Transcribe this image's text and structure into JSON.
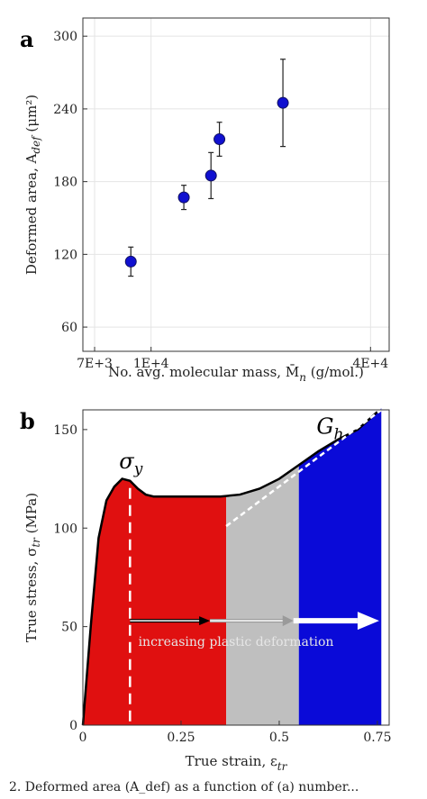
{
  "caption": "2. Deformed area (A_def) as a function of (a) number...",
  "chart_data": [
    {
      "type": "scatter",
      "panel_label": "a",
      "title": "",
      "xlabel": "No. avg. molecular mass, M̄",
      "xlabel_sub": "n",
      "xlabel_unit": "(g/mol.)",
      "ylabel": "Deformed area, A",
      "ylabel_sub": "def",
      "ylabel_unit": "(μm²)",
      "xscale": "log",
      "xlim": [
        6500,
        45000
      ],
      "ylim": [
        40,
        315
      ],
      "x_ticks": [
        {
          "value": 7000,
          "label": "7E+3"
        },
        {
          "value": 10000,
          "label": "1E+4"
        },
        {
          "value": 40000,
          "label": "4E+4"
        }
      ],
      "y_ticks": [
        60,
        120,
        180,
        240,
        300
      ],
      "grid": true,
      "marker_color": "#1010d0",
      "points": [
        {
          "x": 8800,
          "y": 114,
          "err_low": 12,
          "err_high": 12
        },
        {
          "x": 12300,
          "y": 167,
          "err_low": 10,
          "err_high": 10
        },
        {
          "x": 14600,
          "y": 185,
          "err_low": 19,
          "err_high": 19
        },
        {
          "x": 15400,
          "y": 215,
          "err_low": 14,
          "err_high": 14
        },
        {
          "x": 23000,
          "y": 245,
          "err_low": 36,
          "err_high": 36
        }
      ]
    },
    {
      "type": "area",
      "panel_label": "b",
      "title": "",
      "xlabel": "True strain, ε",
      "xlabel_sub": "tr",
      "ylabel": "True stress, σ",
      "ylabel_sub": "tr",
      "ylabel_unit": "(MPa)",
      "xlim": [
        0,
        0.78
      ],
      "ylim": [
        0,
        160
      ],
      "x_ticks": [
        {
          "value": 0,
          "label": "0"
        },
        {
          "value": 0.25,
          "label": "0.25"
        },
        {
          "value": 0.5,
          "label": "0.5"
        },
        {
          "value": 0.75,
          "label": "0.75"
        }
      ],
      "y_ticks": [
        0,
        50,
        100,
        150
      ],
      "curve": {
        "x": [
          0,
          0.02,
          0.04,
          0.06,
          0.08,
          0.1,
          0.12,
          0.14,
          0.16,
          0.18,
          0.2,
          0.25,
          0.3,
          0.35,
          0.4,
          0.45,
          0.5,
          0.55,
          0.6,
          0.65,
          0.7,
          0.75
        ],
        "y": [
          0,
          50,
          95,
          114,
          121,
          125,
          124,
          120,
          117,
          116,
          116,
          116,
          116,
          116,
          117,
          120,
          125,
          132,
          139,
          145,
          150,
          159
        ]
      },
      "regions": [
        {
          "from": 0,
          "to": 0.365,
          "color": "#e01010"
        },
        {
          "from": 0.365,
          "to": 0.55,
          "color": "#bfbfbf"
        },
        {
          "from": 0.55,
          "to": 0.76,
          "color": "#0a0ad8"
        }
      ],
      "yield_strain": 0.12,
      "yield_label": "σ",
      "yield_label_sub": "y",
      "hardening_label": "G",
      "hardening_label_sub": "h",
      "hardening_line": {
        "x": [
          0.365,
          0.76
        ],
        "y": [
          101,
          160
        ]
      },
      "arrow_y": 53,
      "arrow_x": [
        0.12,
        0.75
      ],
      "annotation": "increasing plastic deformation"
    }
  ]
}
